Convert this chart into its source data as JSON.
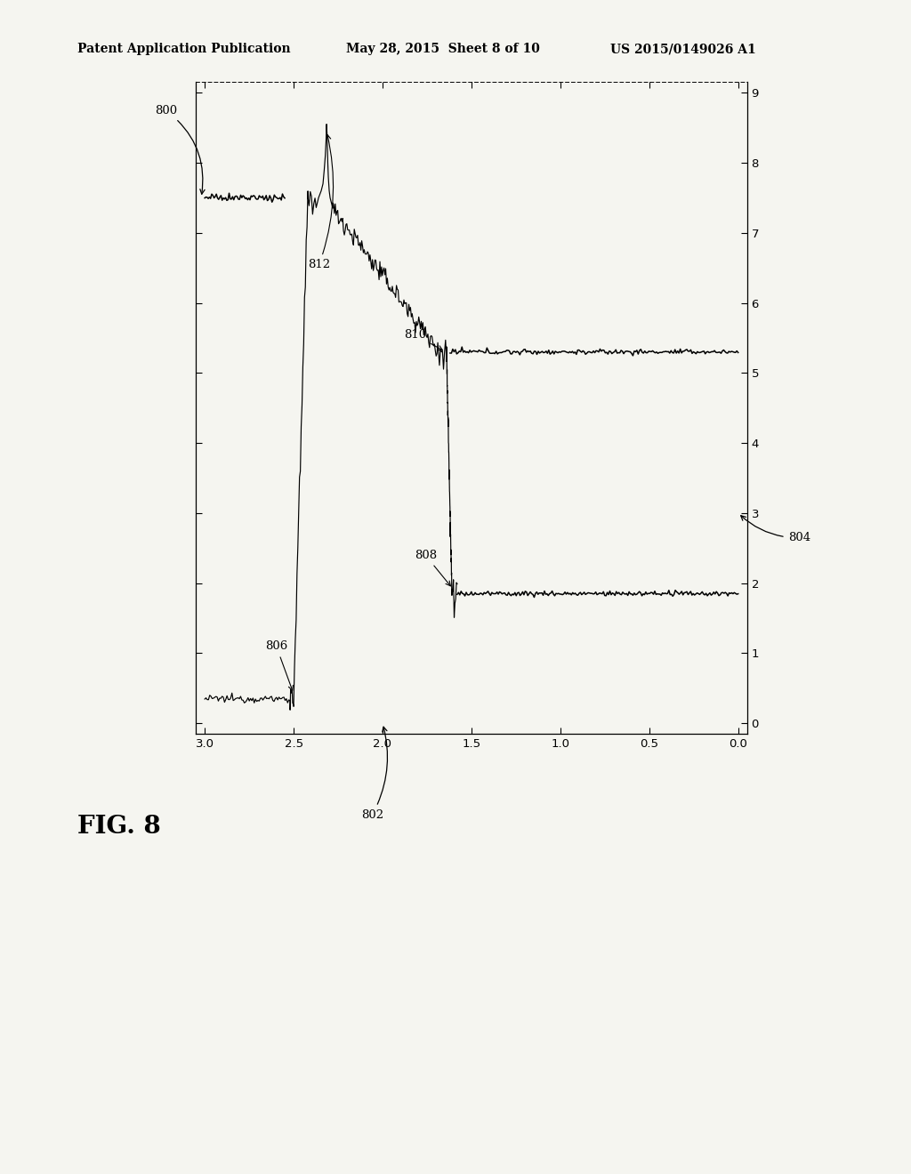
{
  "header_left": "Patent Application Publication",
  "header_center": "May 28, 2015  Sheet 8 of 10",
  "header_right": "US 2015/0149026 A1",
  "fig_label": "FIG. 8",
  "label_800": "800",
  "label_802": "802",
  "label_804": "804",
  "label_806": "806",
  "label_808": "808",
  "label_810": "810",
  "label_812": "812",
  "x_ticks": [
    3,
    2.5,
    2,
    1.5,
    1,
    0.5,
    0
  ],
  "y_ticks": [
    0,
    1,
    2,
    3,
    4,
    5,
    6,
    7,
    8,
    9
  ],
  "x_lim": [
    3.05,
    -0.05
  ],
  "y_lim": [
    -0.15,
    9.15
  ],
  "bg_color": "#f5f5f0",
  "line_color": "#000000",
  "font_size_header": 10,
  "font_size_fig": 20,
  "font_size_labels": 10,
  "top_level_y": 7.5,
  "mid_level_y": 5.3,
  "low_level_y": 1.85,
  "bottom_level_y": 0.35,
  "x_top_flat_start": 3.0,
  "x_top_flat_end": 2.55,
  "x_descent_end": 1.68,
  "x_drop_at": 1.62,
  "x_low_flat_end": 0.0,
  "spike_x": 2.32,
  "spike_top_y": 8.55,
  "x_bottom_flat_start": 3.0,
  "x_bottom_flat_end": 2.52
}
